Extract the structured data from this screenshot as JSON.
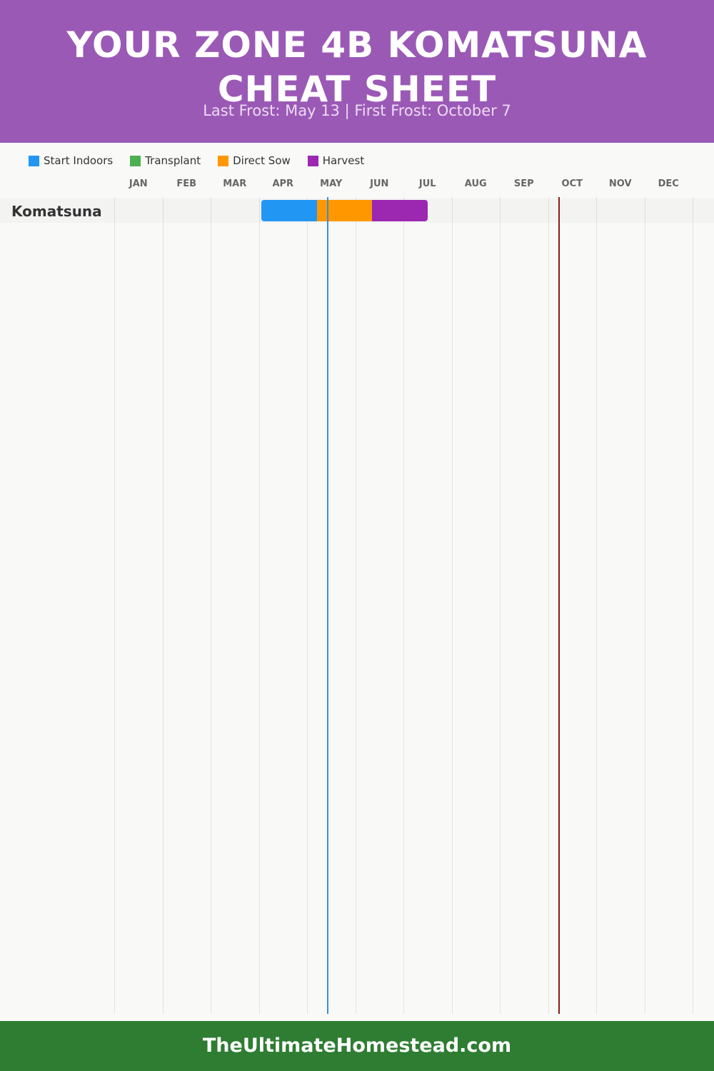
{
  "header": {
    "title": "YOUR ZONE 4B KOMATSUNA CHEAT SHEET",
    "subtitle": "Last Frost: May 13 | First Frost: October 7"
  },
  "footer": {
    "site": "TheUltimateHomestead.com"
  },
  "colors": {
    "header_bg": "#9b59b6",
    "footer_bg": "#2e7d32",
    "last_frost_line": "#3a8fd6",
    "first_frost_line": "#8b1a1a"
  },
  "chart_data": {
    "type": "gantt",
    "legend_position": "top-left",
    "legend": [
      {
        "name": "Start Indoors",
        "color": "#2196f3"
      },
      {
        "name": "Transplant",
        "color": "#4caf50"
      },
      {
        "name": "Direct Sow",
        "color": "#ff9800"
      },
      {
        "name": "Harvest",
        "color": "#9c27b0"
      }
    ],
    "months": [
      "JAN",
      "FEB",
      "MAR",
      "APR",
      "MAY",
      "JUN",
      "JUL",
      "AUG",
      "SEP",
      "OCT",
      "NOV",
      "DEC"
    ],
    "rows": [
      {
        "name": "Komatsuna",
        "segments": [
          {
            "phase": "Start Indoors",
            "start": "Apr 1",
            "end": "May 1",
            "start_month": 3.05,
            "end_month": 4.2
          },
          {
            "phase": "Direct Sow",
            "start": "May 1",
            "end": "Jun 1",
            "start_month": 4.2,
            "end_month": 5.35
          },
          {
            "phase": "Harvest",
            "start": "Jun 1",
            "end": "Jul 1",
            "start_month": 5.35,
            "end_month": 6.5
          }
        ]
      }
    ],
    "frost_dates": {
      "last_frost": {
        "label": "May 13",
        "month": 4.43
      },
      "first_frost": {
        "label": "October 7",
        "month": 9.23
      }
    },
    "grid": true
  }
}
